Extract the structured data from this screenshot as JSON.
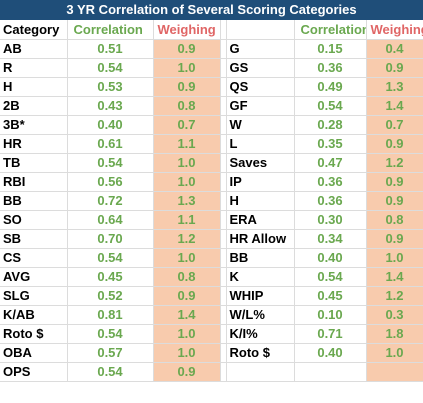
{
  "title": "3 YR Correlation of Several Scoring Categories",
  "headers": {
    "category": "Category",
    "correlation": "Correlation",
    "weighing": "Weighing"
  },
  "left": [
    {
      "cat": "AB",
      "cor": "0.51",
      "wei": "0.9"
    },
    {
      "cat": "R",
      "cor": "0.54",
      "wei": "1.0"
    },
    {
      "cat": "H",
      "cor": "0.53",
      "wei": "0.9"
    },
    {
      "cat": "2B",
      "cor": "0.43",
      "wei": "0.8"
    },
    {
      "cat": "3B*",
      "cor": "0.40",
      "wei": "0.7"
    },
    {
      "cat": "HR",
      "cor": "0.61",
      "wei": "1.1"
    },
    {
      "cat": "TB",
      "cor": "0.54",
      "wei": "1.0"
    },
    {
      "cat": "RBI",
      "cor": "0.56",
      "wei": "1.0"
    },
    {
      "cat": "BB",
      "cor": "0.72",
      "wei": "1.3"
    },
    {
      "cat": "SO",
      "cor": "0.64",
      "wei": "1.1"
    },
    {
      "cat": "SB",
      "cor": "0.70",
      "wei": "1.2"
    },
    {
      "cat": "CS",
      "cor": "0.54",
      "wei": "1.0"
    },
    {
      "cat": "AVG",
      "cor": "0.45",
      "wei": "0.8"
    },
    {
      "cat": "SLG",
      "cor": "0.52",
      "wei": "0.9"
    },
    {
      "cat": "K/AB",
      "cor": "0.81",
      "wei": "1.4"
    },
    {
      "cat": "Roto $",
      "cor": "0.54",
      "wei": "1.0"
    },
    {
      "cat": "OBA",
      "cor": "0.57",
      "wei": "1.0"
    },
    {
      "cat": "OPS",
      "cor": "0.54",
      "wei": "0.9"
    }
  ],
  "right": [
    {
      "cat": "G",
      "cor": "0.15",
      "wei": "0.4"
    },
    {
      "cat": "GS",
      "cor": "0.36",
      "wei": "0.9"
    },
    {
      "cat": "QS",
      "cor": "0.49",
      "wei": "1.3"
    },
    {
      "cat": "GF",
      "cor": "0.54",
      "wei": "1.4"
    },
    {
      "cat": "W",
      "cor": "0.28",
      "wei": "0.7"
    },
    {
      "cat": "L",
      "cor": "0.35",
      "wei": "0.9"
    },
    {
      "cat": "Saves",
      "cor": "0.47",
      "wei": "1.2"
    },
    {
      "cat": "IP",
      "cor": "0.36",
      "wei": "0.9"
    },
    {
      "cat": "H",
      "cor": "0.36",
      "wei": "0.9"
    },
    {
      "cat": "ERA",
      "cor": "0.30",
      "wei": "0.8"
    },
    {
      "cat": "HR Allow",
      "cor": "0.34",
      "wei": "0.9"
    },
    {
      "cat": "BB",
      "cor": "0.40",
      "wei": "1.0"
    },
    {
      "cat": "K",
      "cor": "0.54",
      "wei": "1.4"
    },
    {
      "cat": "WHIP",
      "cor": "0.45",
      "wei": "1.2"
    },
    {
      "cat": "W/L%",
      "cor": "0.10",
      "wei": "0.3"
    },
    {
      "cat": "K/I%",
      "cor": "0.71",
      "wei": "1.8"
    },
    {
      "cat": "Roto $",
      "cor": "0.40",
      "wei": "1.0"
    }
  ],
  "colors": {
    "title_bg": "#1f4e79",
    "correlation_text": "#6aa84f",
    "weighing_header": "#e06666",
    "weighing_fill": "#f8cbad"
  }
}
